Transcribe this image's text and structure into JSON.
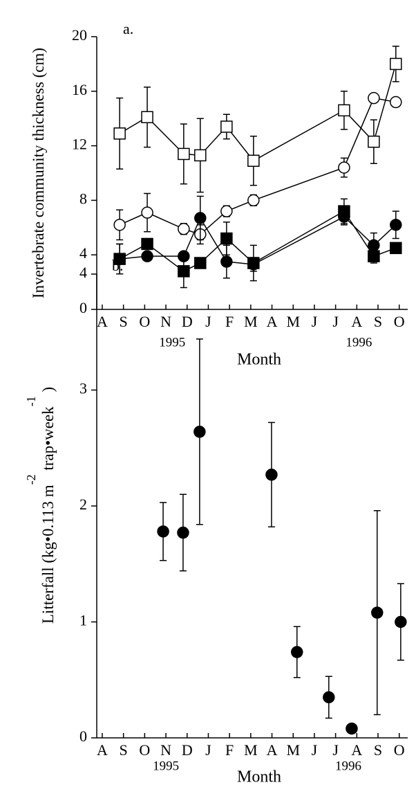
{
  "chart_data": [
    {
      "type": "line",
      "panel_label": "a.",
      "ylabel": [
        "Invertebrate community thickness (cm)"
      ],
      "xlabel": "Month",
      "xlim": [
        -0.26,
        14.4
      ],
      "ylim": [
        0,
        20
      ],
      "yticks": [
        0,
        4,
        8,
        12,
        16,
        20
      ],
      "xticks": [
        {
          "value": 0,
          "label": "A"
        },
        {
          "value": 1,
          "label": "S"
        },
        {
          "value": 2,
          "label": "O"
        },
        {
          "value": 3,
          "label": "N"
        },
        {
          "value": 4,
          "label": "D"
        },
        {
          "value": 5,
          "label": "J"
        },
        {
          "value": 6,
          "label": "F"
        },
        {
          "value": 7,
          "label": "M"
        },
        {
          "value": 8,
          "label": "A"
        },
        {
          "value": 9,
          "label": "M"
        },
        {
          "value": 10,
          "label": "J"
        },
        {
          "value": 11,
          "label": "J"
        },
        {
          "value": 12,
          "label": "A"
        },
        {
          "value": 13,
          "label": "S"
        },
        {
          "value": 14,
          "label": "O"
        }
      ],
      "year_ticks": [
        {
          "value": 3.3,
          "label": "1995"
        },
        {
          "value": 12.1,
          "label": "1996"
        }
      ],
      "x": [
        0.82,
        2.12,
        3.84,
        4.62,
        5.86,
        7.13,
        11.4,
        12.8,
        13.84
      ],
      "series": [
        {
          "marker": "square",
          "filled": false,
          "color": "#000000",
          "values": [
            12.9,
            14.1,
            11.4,
            11.3,
            13.4,
            10.9,
            14.6,
            12.3,
            18.0
          ],
          "errors": [
            2.6,
            2.2,
            2.2,
            2.7,
            0.9,
            1.8,
            1.4,
            1.6,
            1.3
          ]
        },
        {
          "marker": "circle",
          "filled": false,
          "color": "#000000",
          "values": [
            6.2,
            7.1,
            5.9,
            5.5,
            7.2,
            8.0,
            10.4,
            15.5,
            15.2
          ],
          "errors": [
            1.1,
            1.4,
            0.4,
            0.7,
            0.4,
            0.4,
            0.7,
            0.2,
            0.3
          ]
        },
        {
          "marker": "circle",
          "filled": true,
          "color": "#000000",
          "values": [
            3.7,
            3.9,
            3.9,
            6.7,
            3.5,
            3.3,
            6.8,
            4.7,
            6.2
          ],
          "errors": [
            1.1,
            0.3,
            0.3,
            1.6,
            1.2,
            0.5,
            0.6,
            0.9,
            1.0
          ]
        },
        {
          "marker": "square",
          "filled": true,
          "color": "#000000",
          "values": [
            3.7,
            4.8,
            2.8,
            3.4,
            5.2,
            3.4,
            7.2,
            3.9,
            4.5
          ],
          "errors": [
            1.1,
            0.3,
            1.2,
            0.3,
            1.2,
            1.3,
            0.9,
            0.5,
            0.2
          ]
        }
      ]
    },
    {
      "type": "scatter",
      "panel_label": "b.",
      "ylabel": [
        "Litterfall (kg•0.113 m",
        "-2",
        "  trap•week",
        "-1",
        "  )"
      ],
      "xlabel": "Month",
      "xlim": [
        -0.26,
        14.4
      ],
      "ylim": [
        0,
        4
      ],
      "yticks": [
        0,
        1,
        2,
        3,
        4
      ],
      "xticks": [
        {
          "value": 0,
          "label": "A"
        },
        {
          "value": 1,
          "label": "S"
        },
        {
          "value": 2,
          "label": "O"
        },
        {
          "value": 3,
          "label": "N"
        },
        {
          "value": 4,
          "label": "D"
        },
        {
          "value": 5,
          "label": "J"
        },
        {
          "value": 6,
          "label": "F"
        },
        {
          "value": 7,
          "label": "M"
        },
        {
          "value": 8,
          "label": "A"
        },
        {
          "value": 9,
          "label": "M"
        },
        {
          "value": 10,
          "label": "J"
        },
        {
          "value": 11,
          "label": "J"
        },
        {
          "value": 12,
          "label": "A"
        },
        {
          "value": 13,
          "label": "S"
        },
        {
          "value": 14,
          "label": "O"
        }
      ],
      "year_ticks": [
        {
          "value": 3.0,
          "label": "1995"
        },
        {
          "value": 11.6,
          "label": "1996"
        }
      ],
      "x": [
        2.87,
        3.81,
        4.59,
        7.98,
        9.18,
        10.68,
        11.76,
        12.96,
        14.07
      ],
      "series": [
        {
          "marker": "circle",
          "filled": true,
          "color": "#000000",
          "values": [
            1.78,
            1.77,
            2.64,
            2.27,
            0.74,
            0.35,
            0.08,
            1.08,
            1.0
          ],
          "errors": [
            0.25,
            0.33,
            0.8,
            0.45,
            0.22,
            0.18,
            0.0,
            0.88,
            0.33
          ]
        }
      ]
    }
  ]
}
